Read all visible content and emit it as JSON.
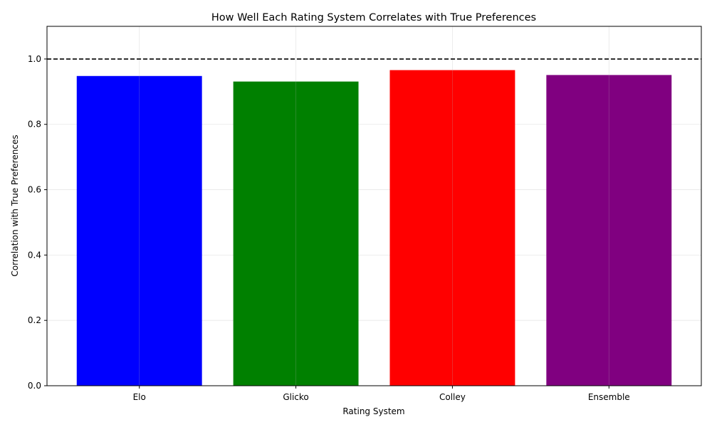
{
  "chart_data": {
    "type": "bar",
    "title": "How Well Each Rating System Correlates with True Preferences",
    "xlabel": "Rating System",
    "ylabel": "Correlation with True Preferences",
    "categories": [
      "Elo",
      "Glicko",
      "Colley",
      "Ensemble"
    ],
    "values": [
      0.948,
      0.931,
      0.966,
      0.951
    ],
    "colors": [
      "#0000ff",
      "#008000",
      "#ff0000",
      "#800080"
    ],
    "ylim": [
      0,
      1.1
    ],
    "yticks": [
      0.0,
      0.2,
      0.4,
      0.6,
      0.8,
      1.0
    ],
    "ytick_labels": [
      "0.0",
      "0.2",
      "0.4",
      "0.6",
      "0.8",
      "1.0"
    ],
    "reference_line": {
      "value": 1.0,
      "style": "dashed",
      "color": "#000000"
    },
    "grid": true
  }
}
